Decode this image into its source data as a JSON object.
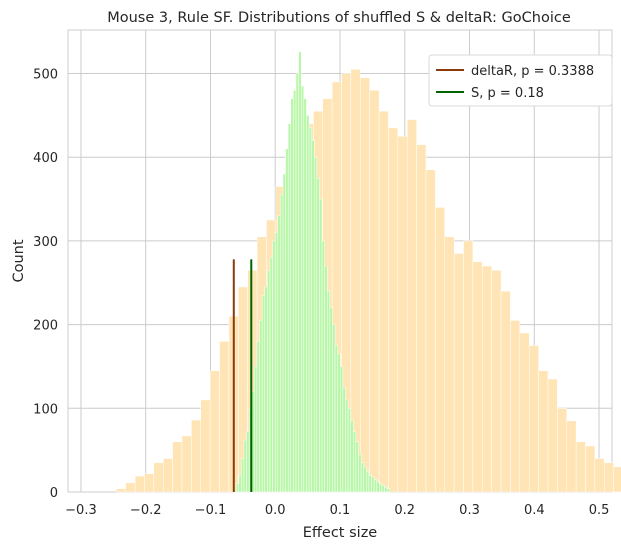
{
  "chart_data": {
    "type": "bar",
    "subtype": "overlaid-histogram",
    "title": "Mouse 3, Rule SF. Distributions of shuffled S & deltaR: GoChoice",
    "xlabel": "Effect size",
    "ylabel": "Count",
    "xlim": [
      -0.32,
      0.52
    ],
    "ylim": [
      0,
      552
    ],
    "xticks": [
      -0.3,
      -0.2,
      -0.1,
      0.0,
      0.1,
      0.2,
      0.3,
      0.4,
      0.5
    ],
    "xtick_labels": [
      "−0.3",
      "−0.2",
      "−0.1",
      "0.0",
      "0.1",
      "0.2",
      "0.3",
      "0.4",
      "0.5"
    ],
    "yticks": [
      0,
      100,
      200,
      300,
      400,
      500
    ],
    "ytick_labels": [
      "0",
      "100",
      "200",
      "300",
      "400",
      "500"
    ],
    "grid": true,
    "legend_position": "top-right",
    "series": [
      {
        "kind": "histogram",
        "color": "#ffe4b5",
        "bin_start": -0.2454,
        "bin_width": 0.01449,
        "counts": [
          4,
          11,
          19,
          22,
          35,
          40,
          60,
          67,
          86,
          110,
          145,
          180,
          210,
          245,
          265,
          305,
          325,
          365,
          400,
          420,
          440,
          455,
          470,
          490,
          500,
          505,
          495,
          480,
          455,
          435,
          425,
          445,
          415,
          385,
          340,
          305,
          285,
          300,
          275,
          270,
          265,
          240,
          205,
          190,
          175,
          145,
          135,
          100,
          85,
          60,
          55,
          40,
          35,
          30,
          18,
          14,
          8,
          6,
          5,
          4
        ]
      },
      {
        "kind": "histogram",
        "color": "#b7f7a7",
        "bin_start": -0.0644,
        "bin_width": 0.00402,
        "counts": [
          4,
          10,
          20,
          40,
          62,
          72,
          100,
          120,
          150,
          180,
          205,
          235,
          245,
          265,
          280,
          300,
          310,
          330,
          355,
          380,
          410,
          440,
          470,
          480,
          500,
          526,
          485,
          470,
          450,
          435,
          420,
          400,
          375,
          350,
          300,
          270,
          240,
          220,
          200,
          175,
          165,
          150,
          125,
          110,
          100,
          85,
          72,
          60,
          45,
          35,
          30,
          25,
          20,
          18,
          15,
          12,
          10,
          8,
          6,
          4
        ]
      },
      {
        "kind": "vline",
        "name": "deltaR, p = 0.3388",
        "color": "#8b3a0e",
        "x": -0.064,
        "ymin": 0,
        "ymax": 278
      },
      {
        "kind": "vline",
        "name": "S, p = 0.18",
        "color": "#006400",
        "x": -0.037,
        "ymin": 0,
        "ymax": 278
      }
    ]
  }
}
